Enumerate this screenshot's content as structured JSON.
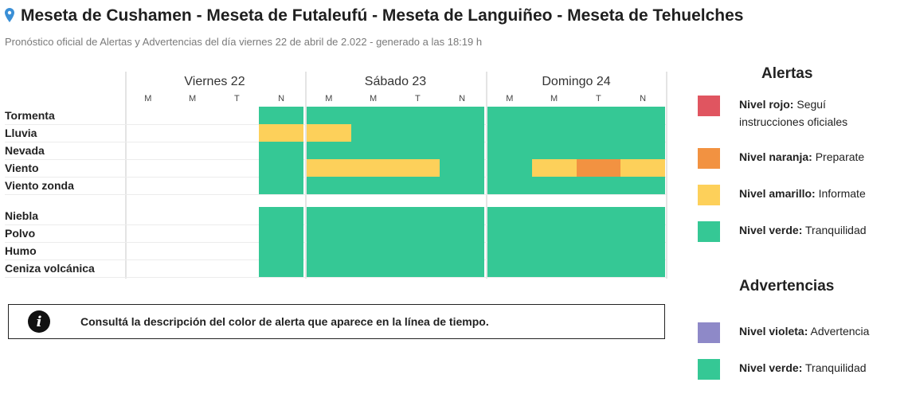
{
  "header": {
    "title": "Meseta de Cushamen - Meseta de Futaleufú - Meseta de Languiñeo - Meseta de Tehuelches",
    "subtitle": "Pronóstico oficial de Alertas y Advertencias del día viernes 22 de abril de 2.022 - generado a las 18:19 h"
  },
  "colors": {
    "rojo": "#e05560",
    "naranja": "#f29241",
    "amarillo": "#fdd05a",
    "verde": "#35c895",
    "violeta": "#8e89c8"
  },
  "timeline": {
    "days": [
      {
        "label": "Viernes 22",
        "periods": [
          "M",
          "M",
          "T",
          "N"
        ]
      },
      {
        "label": "Sábado 23",
        "periods": [
          "M",
          "M",
          "T",
          "N"
        ]
      },
      {
        "label": "Domingo 24",
        "periods": [
          "M",
          "M",
          "T",
          "N"
        ]
      }
    ],
    "rows": [
      {
        "label": "Tormenta",
        "levels": [
          null,
          null,
          null,
          "verde",
          "verde",
          "verde",
          "verde",
          "verde",
          "verde",
          "verde",
          "verde",
          "verde"
        ]
      },
      {
        "label": "Lluvia",
        "levels": [
          null,
          null,
          null,
          "amarillo",
          "amarillo",
          "verde",
          "verde",
          "verde",
          "verde",
          "verde",
          "verde",
          "verde"
        ]
      },
      {
        "label": "Nevada",
        "levels": [
          null,
          null,
          null,
          "verde",
          "verde",
          "verde",
          "verde",
          "verde",
          "verde",
          "verde",
          "verde",
          "verde"
        ]
      },
      {
        "label": "Viento",
        "levels": [
          null,
          null,
          null,
          "verde",
          "amarillo",
          "amarillo",
          "amarillo",
          "verde",
          "verde",
          "amarillo",
          "naranja",
          "amarillo"
        ]
      },
      {
        "label": "Viento zonda",
        "levels": [
          null,
          null,
          null,
          "verde",
          "verde",
          "verde",
          "verde",
          "verde",
          "verde",
          "verde",
          "verde",
          "verde"
        ]
      },
      {
        "label": "Niebla",
        "levels": [
          null,
          null,
          null,
          "verde",
          "verde",
          "verde",
          "verde",
          "verde",
          "verde",
          "verde",
          "verde",
          "verde"
        ]
      },
      {
        "label": "Polvo",
        "levels": [
          null,
          null,
          null,
          "verde",
          "verde",
          "verde",
          "verde",
          "verde",
          "verde",
          "verde",
          "verde",
          "verde"
        ]
      },
      {
        "label": "Humo",
        "levels": [
          null,
          null,
          null,
          "verde",
          "verde",
          "verde",
          "verde",
          "verde",
          "verde",
          "verde",
          "verde",
          "verde"
        ]
      },
      {
        "label": "Ceniza volcánica",
        "levels": [
          null,
          null,
          null,
          "verde",
          "verde",
          "verde",
          "verde",
          "verde",
          "verde",
          "verde",
          "verde",
          "verde"
        ]
      }
    ]
  },
  "info": {
    "text": "Consultá la descripción del color de alerta que aparece en la línea de tiempo."
  },
  "legend": {
    "alertas_title": "Alertas",
    "alertas": [
      {
        "level": "rojo",
        "name": "Nivel rojo:",
        "desc": "Seguí instrucciones oficiales"
      },
      {
        "level": "naranja",
        "name": "Nivel naranja:",
        "desc": "Preparate"
      },
      {
        "level": "amarillo",
        "name": "Nivel amarillo:",
        "desc": "Informate"
      },
      {
        "level": "verde",
        "name": "Nivel verde:",
        "desc": "Tranquilidad"
      }
    ],
    "advertencias_title": "Advertencias",
    "advertencias": [
      {
        "level": "violeta",
        "name": "Nivel violeta:",
        "desc": "Advertencia"
      },
      {
        "level": "verde",
        "name": "Nivel verde:",
        "desc": "Tranquilidad"
      }
    ]
  }
}
